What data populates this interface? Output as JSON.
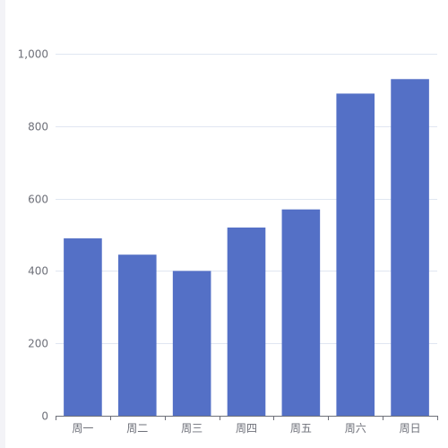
{
  "colors": {
    "bar": "#5470c6",
    "grid": "#e0e6f1",
    "axis": "#6e7079",
    "page_strip": "#f3f3f7"
  },
  "chart_data": {
    "type": "bar",
    "categories": [
      "周一",
      "周二",
      "周三",
      "周四",
      "周五",
      "周六",
      "周日"
    ],
    "values": [
      490,
      445,
      400,
      520,
      570,
      890,
      930
    ],
    "ylim": [
      0,
      1000
    ],
    "yticks": [
      0,
      200,
      400,
      600,
      800,
      1000
    ],
    "ytick_labels": [
      "0",
      "200",
      "400",
      "600",
      "800",
      "1,000"
    ],
    "grid": true,
    "legend": "none"
  }
}
